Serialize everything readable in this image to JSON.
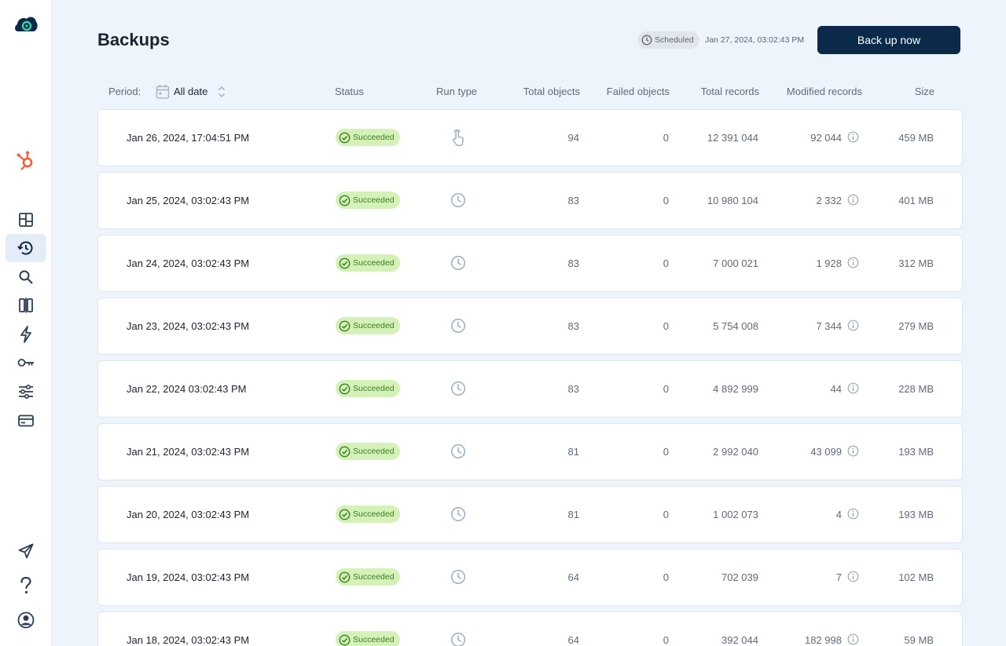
{
  "header": {
    "title": "Backups",
    "schedule_badge": "Scheduled",
    "schedule_date": "Jan 27, 2024, 03:02:43 PM",
    "backup_button": "Back up now"
  },
  "sidebar": {
    "items": [
      {
        "icon": "app-logo-icon"
      },
      {
        "icon": "hubspot-icon"
      },
      {
        "icon": "dashboard-icon"
      },
      {
        "icon": "backups-history-icon",
        "active": true
      },
      {
        "icon": "search-icon"
      },
      {
        "icon": "compare-icon"
      },
      {
        "icon": "lightning-icon"
      },
      {
        "icon": "key-icon"
      },
      {
        "icon": "settings-sliders-icon"
      },
      {
        "icon": "billing-card-icon"
      },
      {
        "icon": "rocket-icon"
      },
      {
        "icon": "help-icon"
      },
      {
        "icon": "user-account-icon"
      }
    ]
  },
  "table": {
    "period_label": "Period:",
    "period_value": "All date",
    "columns": {
      "status": "Status",
      "run_type": "Run type",
      "total_objects": "Total objects",
      "failed_objects": "Failed objects",
      "total_records": "Total records",
      "modified_records": "Modified records",
      "size": "Size"
    },
    "rows": [
      {
        "date": "Jan 26, 2024, 17:04:51 PM",
        "status": "Succeeded",
        "run_type": "manual",
        "total_objects": "94",
        "failed_objects": "0",
        "total_records": "12 391 044",
        "modified_records": "92 044",
        "size": "459 MB"
      },
      {
        "date": "Jan 25, 2024, 03:02:43 PM",
        "status": "Succeeded",
        "run_type": "scheduled",
        "total_objects": "83",
        "failed_objects": "0",
        "total_records": "10 980 104",
        "modified_records": "2 332",
        "size": "401 MB"
      },
      {
        "date": "Jan 24, 2024, 03:02:43 PM",
        "status": "Succeeded",
        "run_type": "scheduled",
        "total_objects": "83",
        "failed_objects": "0",
        "total_records": "7 000 021",
        "modified_records": "1 928",
        "size": "312 MB"
      },
      {
        "date": "Jan 23, 2024, 03:02:43 PM",
        "status": "Succeeded",
        "run_type": "scheduled",
        "total_objects": "83",
        "failed_objects": "0",
        "total_records": "5 754 008",
        "modified_records": "7 344",
        "size": "279 MB"
      },
      {
        "date": "Jan 22, 2024 03:02:43 PM",
        "status": "Succeeded",
        "run_type": "scheduled",
        "total_objects": "83",
        "failed_objects": "0",
        "total_records": "4 892 999",
        "modified_records": "44",
        "size": "228 MB"
      },
      {
        "date": "Jan 21, 2024, 03:02:43 PM",
        "status": "Succeeded",
        "run_type": "scheduled",
        "total_objects": "81",
        "failed_objects": "0",
        "total_records": "2 992 040",
        "modified_records": "43 099",
        "size": "193 MB"
      },
      {
        "date": "Jan 20, 2024, 03:02:43 PM",
        "status": "Succeeded",
        "run_type": "scheduled",
        "total_objects": "81",
        "failed_objects": "0",
        "total_records": "1 002 073",
        "modified_records": "4",
        "size": "193 MB"
      },
      {
        "date": "Jan 19, 2024, 03:02:43 PM",
        "status": "Succeeded",
        "run_type": "scheduled",
        "total_objects": "64",
        "failed_objects": "0",
        "total_records": "702 039",
        "modified_records": "7",
        "size": "102 MB"
      },
      {
        "date": "Jan 18, 2024, 03:02:43 PM",
        "status": "Succeeded",
        "run_type": "scheduled",
        "total_objects": "64",
        "failed_objects": "0",
        "total_records": "392 044",
        "modified_records": "182 998",
        "size": "59 MB"
      }
    ]
  },
  "colors": {
    "primary_button": "#0b2a4a",
    "success_badge_bg": "#d4f2b8",
    "success_badge_text": "#3e7d23",
    "brand_orange": "#ff5c35",
    "page_bg": "#eef4fb"
  }
}
